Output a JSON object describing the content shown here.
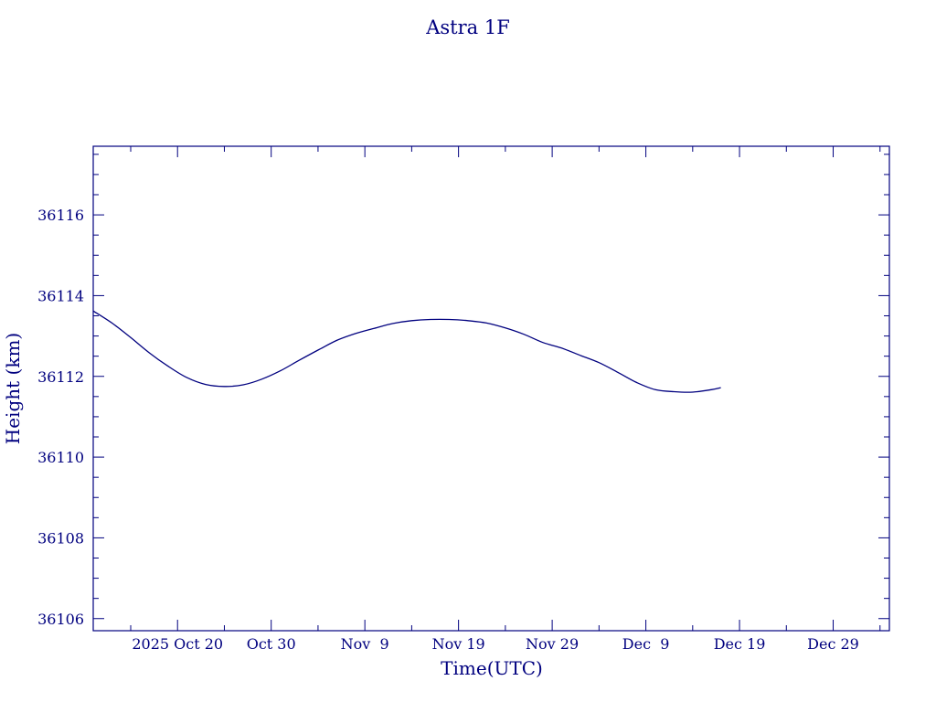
{
  "colors": {
    "ink": "#00007f",
    "background": "#ffffff"
  },
  "chart_data": {
    "type": "line",
    "title": "Astra 1F",
    "xlabel": "Time(UTC)",
    "ylabel": "Height (km)",
    "x_unit": "date (UTC)",
    "xlim": [
      "2025-10-11",
      "2026-01-04"
    ],
    "ylim": [
      36105.7,
      36117.7
    ],
    "x_ticks": [
      {
        "date": "2025-10-20",
        "label": "2025 Oct 20"
      },
      {
        "date": "2025-10-30",
        "label": "Oct 30"
      },
      {
        "date": "2025-11-09",
        "label": "Nov  9"
      },
      {
        "date": "2025-11-19",
        "label": "Nov 19"
      },
      {
        "date": "2025-11-29",
        "label": "Nov 29"
      },
      {
        "date": "2025-12-09",
        "label": "Dec  9"
      },
      {
        "date": "2025-12-19",
        "label": "Dec 19"
      },
      {
        "date": "2025-12-29",
        "label": "Dec 29"
      }
    ],
    "y_ticks": [
      36106,
      36108,
      36110,
      36112,
      36114,
      36116
    ],
    "grid": false,
    "series": [
      {
        "points": [
          {
            "x": "2025-10-11",
            "y": 36113.62
          },
          {
            "x": "2025-10-13",
            "y": 36113.32
          },
          {
            "x": "2025-10-15",
            "y": 36112.96
          },
          {
            "x": "2025-10-17",
            "y": 36112.58
          },
          {
            "x": "2025-10-19",
            "y": 36112.25
          },
          {
            "x": "2025-10-21",
            "y": 36111.97
          },
          {
            "x": "2025-10-23",
            "y": 36111.8
          },
          {
            "x": "2025-10-25",
            "y": 36111.75
          },
          {
            "x": "2025-10-27",
            "y": 36111.79
          },
          {
            "x": "2025-10-29",
            "y": 36111.93
          },
          {
            "x": "2025-10-31",
            "y": 36112.14
          },
          {
            "x": "2025-11-02",
            "y": 36112.4
          },
          {
            "x": "2025-11-04",
            "y": 36112.65
          },
          {
            "x": "2025-11-06",
            "y": 36112.89
          },
          {
            "x": "2025-11-08",
            "y": 36113.06
          },
          {
            "x": "2025-11-10",
            "y": 36113.19
          },
          {
            "x": "2025-11-12",
            "y": 36113.31
          },
          {
            "x": "2025-11-14",
            "y": 36113.38
          },
          {
            "x": "2025-11-16",
            "y": 36113.41
          },
          {
            "x": "2025-11-18",
            "y": 36113.41
          },
          {
            "x": "2025-11-20",
            "y": 36113.38
          },
          {
            "x": "2025-11-22",
            "y": 36113.32
          },
          {
            "x": "2025-11-24",
            "y": 36113.2
          },
          {
            "x": "2025-11-26",
            "y": 36113.04
          },
          {
            "x": "2025-11-28",
            "y": 36112.84
          },
          {
            "x": "2025-11-30",
            "y": 36112.7
          },
          {
            "x": "2025-12-02",
            "y": 36112.52
          },
          {
            "x": "2025-12-04",
            "y": 36112.34
          },
          {
            "x": "2025-12-06",
            "y": 36112.1
          },
          {
            "x": "2025-12-08",
            "y": 36111.85
          },
          {
            "x": "2025-12-10",
            "y": 36111.67
          },
          {
            "x": "2025-12-12",
            "y": 36111.62
          },
          {
            "x": "2025-12-14",
            "y": 36111.61
          },
          {
            "x": "2025-12-16",
            "y": 36111.67
          },
          {
            "x": "2025-12-17",
            "y": 36111.72
          }
        ]
      }
    ]
  }
}
